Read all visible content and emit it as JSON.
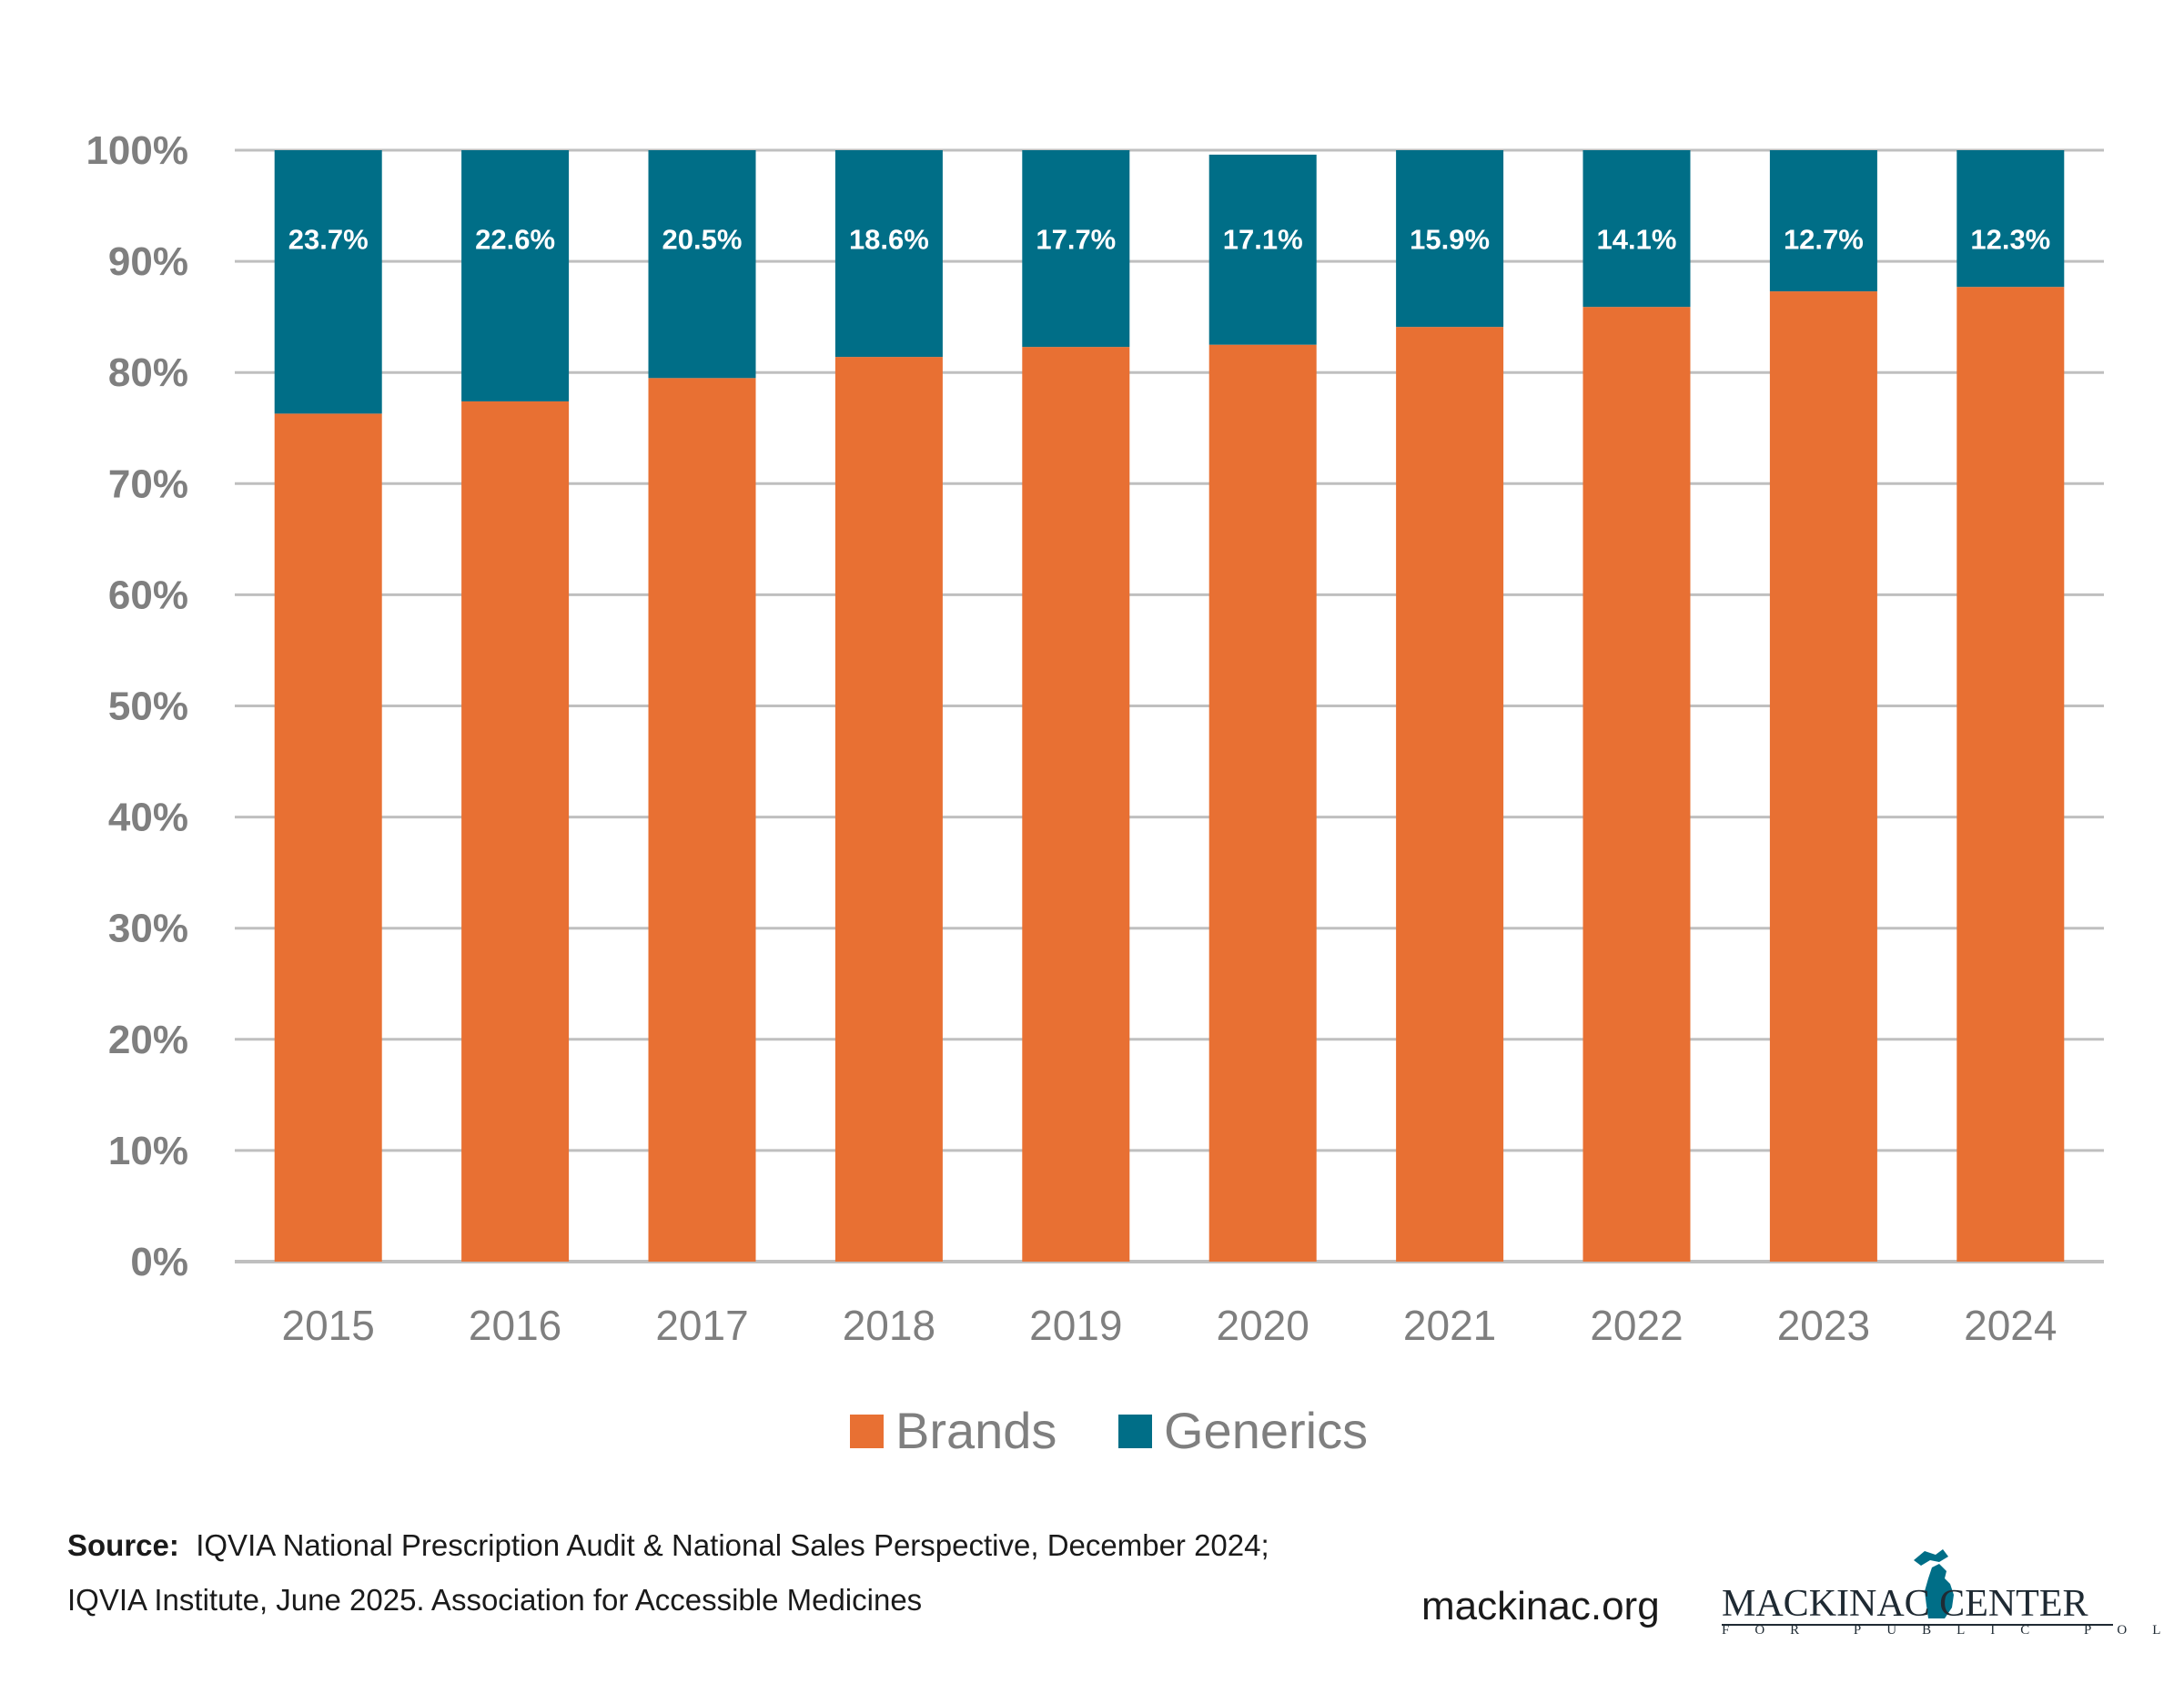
{
  "chart_data": {
    "type": "bar",
    "stacked": true,
    "categories": [
      "2015",
      "2016",
      "2017",
      "2018",
      "2019",
      "2020",
      "2021",
      "2022",
      "2023",
      "2024"
    ],
    "series": [
      {
        "name": "Brands",
        "color": "#e87033",
        "values": [
          76.3,
          77.4,
          79.5,
          81.4,
          82.3,
          82.5,
          84.1,
          85.9,
          87.3,
          87.7
        ]
      },
      {
        "name": "Generics",
        "color": "#006e87",
        "values": [
          23.7,
          22.6,
          20.5,
          18.6,
          17.7,
          17.1,
          15.9,
          14.1,
          12.7,
          12.3
        ]
      }
    ],
    "data_labels": [
      "23.7%",
      "22.6%",
      "20.5%",
      "18.6%",
      "17.7%",
      "17.1%",
      "15.9%",
      "14.1%",
      "12.7%",
      "12.3%"
    ],
    "ylim": [
      0,
      100
    ],
    "yticks": [
      "0%",
      "10%",
      "20%",
      "30%",
      "40%",
      "50%",
      "60%",
      "70%",
      "80%",
      "90%",
      "100%"
    ],
    "grid": true,
    "legend": "bottom-center",
    "title": "",
    "xlabel": "",
    "ylabel": ""
  },
  "footer": {
    "source_label": "Source:",
    "source_text": "IQVIA National Prescription Audit & National Sales Perspective, December 2024; IQVIA Institute, June 2025. Association for Accessible Medicines",
    "website": "mackinac.org",
    "logo_name": "MACKINAC CENTER",
    "logo_tagline": "FOR PUBLIC POLICY"
  }
}
